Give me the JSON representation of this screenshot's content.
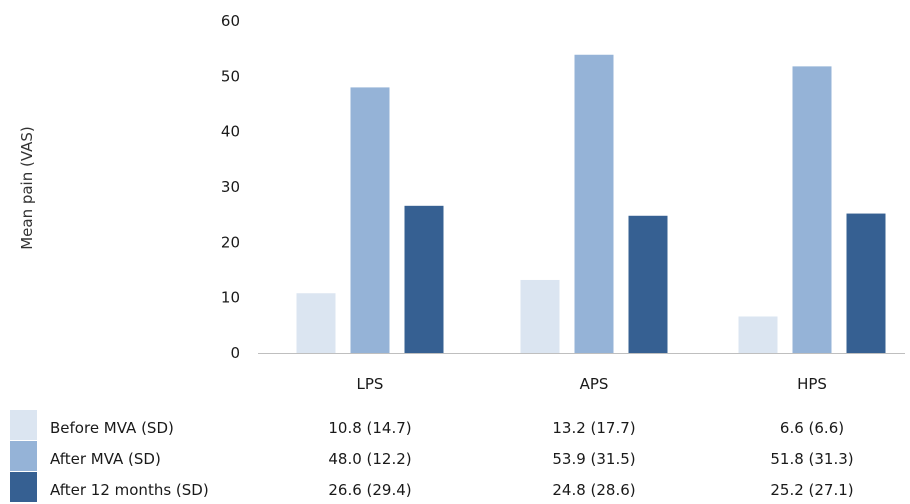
{
  "chart_data": {
    "type": "bar",
    "categories": [
      "LPS",
      "APS",
      "HPS"
    ],
    "ylabel": "Mean pain (VAS)",
    "xlabel": "",
    "ylim": [
      0,
      60
    ],
    "yticks": [
      0,
      10,
      20,
      30,
      40,
      50,
      60
    ],
    "grid": false,
    "legend_position": "bottom (data table)",
    "series": [
      {
        "name": "Before MVA (SD)",
        "values": [
          10.8,
          13.2,
          6.6
        ],
        "labels": [
          "10.8 (14.7)",
          "13.2 (17.7)",
          "6.6 (6.6)"
        ],
        "color": "#dbe5f1"
      },
      {
        "name": "After MVA (SD)",
        "values": [
          48.0,
          53.9,
          51.8
        ],
        "labels": [
          "48.0 (12.2)",
          "53.9 (31.5)",
          "51.8 (31.3)"
        ],
        "color": "#95b3d7"
      },
      {
        "name": "After 12 months (SD)",
        "values": [
          26.6,
          24.8,
          25.2
        ],
        "labels": [
          "26.6 (29.4)",
          "24.8 (28.6)",
          "25.2 (27.1)"
        ],
        "color": "#366092"
      }
    ]
  }
}
